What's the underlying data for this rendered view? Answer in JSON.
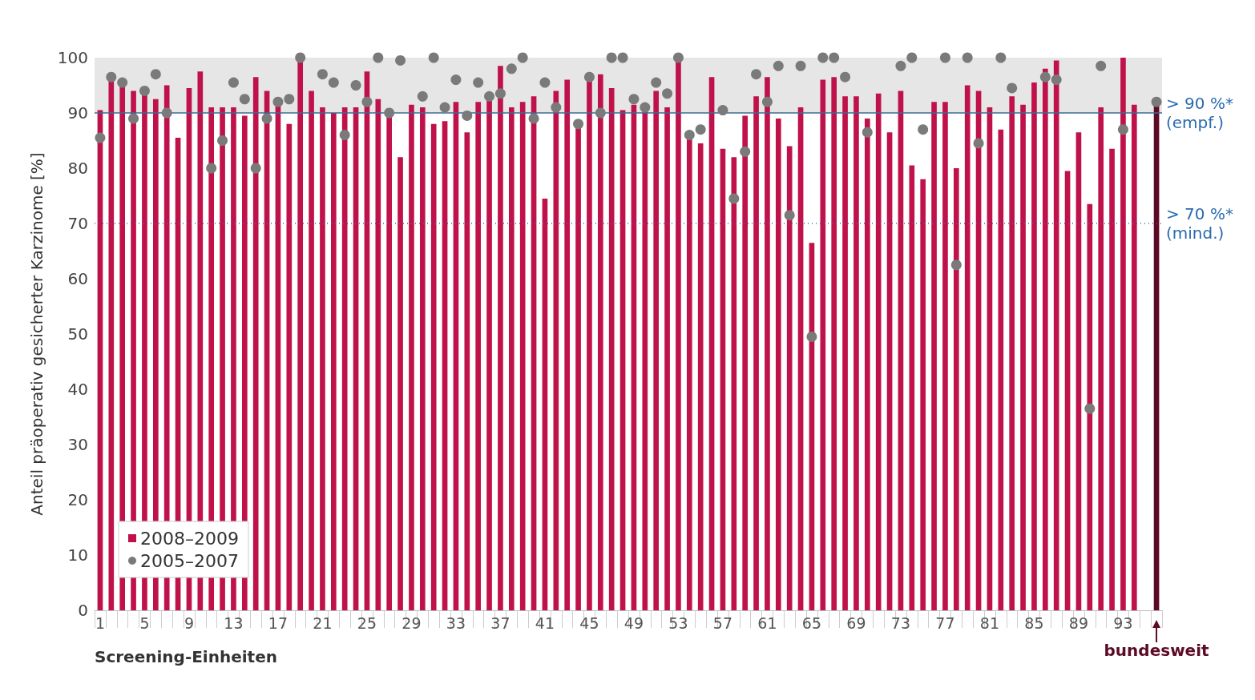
{
  "chart_data": {
    "type": "bar",
    "xlabel": "Screening-Einheiten",
    "ylabel": "Anteil präoperativ gesicherter Karzinome [%]",
    "categories": [
      "1",
      null,
      null,
      null,
      "5",
      null,
      null,
      null,
      "9",
      null,
      null,
      null,
      "13",
      null,
      null,
      null,
      "17",
      null,
      null,
      null,
      "21",
      null,
      null,
      null,
      "25",
      null,
      null,
      null,
      "29",
      null,
      null,
      null,
      "33",
      null,
      null,
      null,
      "37",
      null,
      null,
      null,
      "41",
      null,
      null,
      null,
      "45",
      null,
      null,
      null,
      "49",
      null,
      null,
      null,
      "53",
      null,
      null,
      null,
      "57",
      null,
      null,
      null,
      "61",
      null,
      null,
      null,
      "65",
      null,
      null,
      null,
      "69",
      null,
      null,
      null,
      "73",
      null,
      null,
      null,
      "77",
      null,
      null,
      null,
      "81",
      null,
      null,
      null,
      "85",
      null,
      null,
      null,
      "89",
      null,
      null,
      null,
      "93",
      null,
      null,
      "bundesweit"
    ],
    "series": [
      {
        "name": "2008–2009",
        "color": "#c0124a",
        "colors": [
          "#c0124a",
          "#c0124a",
          "#c0124a",
          "#c0124a",
          "#c0124a",
          "#c0124a",
          "#c0124a",
          "#c0124a",
          "#c0124a",
          "#c0124a",
          "#c0124a",
          "#c0124a",
          "#c0124a",
          "#c0124a",
          "#c0124a",
          "#c0124a",
          "#c0124a",
          "#c0124a",
          "#c0124a",
          "#c0124a",
          "#c0124a",
          "#c0124a",
          "#c0124a",
          "#c0124a",
          "#c0124a",
          "#c0124a",
          "#c0124a",
          "#c0124a",
          "#c0124a",
          "#c0124a",
          "#c0124a",
          "#c0124a",
          "#c0124a",
          "#c0124a",
          "#c0124a",
          "#c0124a",
          "#c0124a",
          "#c0124a",
          "#c0124a",
          "#c0124a",
          "#c0124a",
          "#c0124a",
          "#c0124a",
          "#c0124a",
          "#c0124a",
          "#c0124a",
          "#c0124a",
          "#c0124a",
          "#c0124a",
          "#c0124a",
          "#c0124a",
          "#c0124a",
          "#c0124a",
          "#c0124a",
          "#c0124a",
          "#c0124a",
          "#c0124a",
          "#c0124a",
          "#c0124a",
          "#c0124a",
          "#c0124a",
          "#c0124a",
          "#c0124a",
          "#c0124a",
          "#c0124a",
          "#c0124a",
          "#c0124a",
          "#c0124a",
          "#c0124a",
          "#c0124a",
          "#c0124a",
          "#c0124a",
          "#c0124a",
          "#c0124a",
          "#c0124a",
          "#c0124a",
          "#c0124a",
          "#c0124a",
          "#c0124a",
          "#c0124a",
          "#c0124a",
          "#c0124a",
          "#c0124a",
          "#c0124a",
          "#c0124a",
          "#c0124a",
          "#c0124a",
          "#c0124a",
          "#c0124a",
          "#c0124a",
          "#c0124a",
          "#c0124a",
          "#c0124a",
          "#c0124a",
          "#c0124a",
          "#5c0a26"
        ],
        "values": [
          90.5,
          96,
          95.5,
          94,
          93.5,
          92.5,
          95,
          85.5,
          94.5,
          97.5,
          91,
          91,
          91,
          89.5,
          96.5,
          94,
          92,
          88,
          100,
          94,
          91,
          90,
          91,
          91,
          97.5,
          92.5,
          90,
          82,
          91.5,
          91,
          88,
          88.5,
          92,
          86.5,
          92,
          92.5,
          98.5,
          91,
          92,
          93,
          74.5,
          94,
          96,
          88,
          97,
          97,
          94.5,
          90.5,
          91.5,
          90.5,
          94,
          91,
          100,
          86,
          84.5,
          96.5,
          83.5,
          82,
          89.5,
          93,
          96.5,
          89,
          84,
          91,
          66.5,
          96,
          96.5,
          93,
          93,
          89,
          93.5,
          86.5,
          94,
          80.5,
          78,
          92,
          92,
          80,
          95,
          94,
          91,
          87,
          93,
          91.5,
          95.5,
          98,
          99.5,
          79.5,
          86.5,
          73.5,
          91,
          83.5,
          100,
          91.5,
          null,
          91.5
        ]
      },
      {
        "name": "2005–2007",
        "type": "scatter",
        "color": "#7a7a7a",
        "values": [
          85.5,
          96.5,
          95.5,
          89,
          94,
          97,
          90,
          null,
          null,
          null,
          80,
          85,
          95.5,
          92.5,
          80,
          89,
          92,
          92.5,
          100,
          null,
          97,
          95.5,
          86,
          95,
          92,
          100,
          90,
          99.5,
          null,
          93,
          100,
          91,
          96,
          89.5,
          95.5,
          93,
          93.5,
          98,
          100,
          89,
          95.5,
          91,
          null,
          88,
          96.5,
          90,
          100,
          100,
          92.5,
          91,
          95.5,
          93.5,
          100,
          86,
          87,
          null,
          90.5,
          74.5,
          83,
          97,
          92,
          98.5,
          71.5,
          98.5,
          49.5,
          100,
          100,
          96.5,
          null,
          86.5,
          null,
          null,
          98.5,
          100,
          87,
          null,
          100,
          62.5,
          100,
          84.5,
          null,
          100,
          94.5,
          null,
          null,
          96.5,
          96,
          null,
          null,
          36.5,
          98.5,
          null,
          87,
          null,
          null,
          92
        ]
      }
    ],
    "ylim": [
      0,
      100
    ],
    "yticks": [
      0,
      10,
      20,
      30,
      40,
      50,
      60,
      70,
      80,
      90,
      100
    ],
    "ref_lines": [
      {
        "axis": "y",
        "value": 90,
        "label": "> 90 %*\n(empf.)",
        "color": "#3d6a94",
        "line_style": "solid"
      },
      {
        "axis": "y",
        "value": 70,
        "label": "> 70 %*\n(mind.)",
        "color": "#3d6a94",
        "line_style": "dotted"
      }
    ],
    "bands": [
      {
        "axis": "y",
        "from": 90,
        "to": 100,
        "color": "#e6e6e6"
      }
    ],
    "legend": "bottom left",
    "marker": "circle",
    "grid": false
  }
}
